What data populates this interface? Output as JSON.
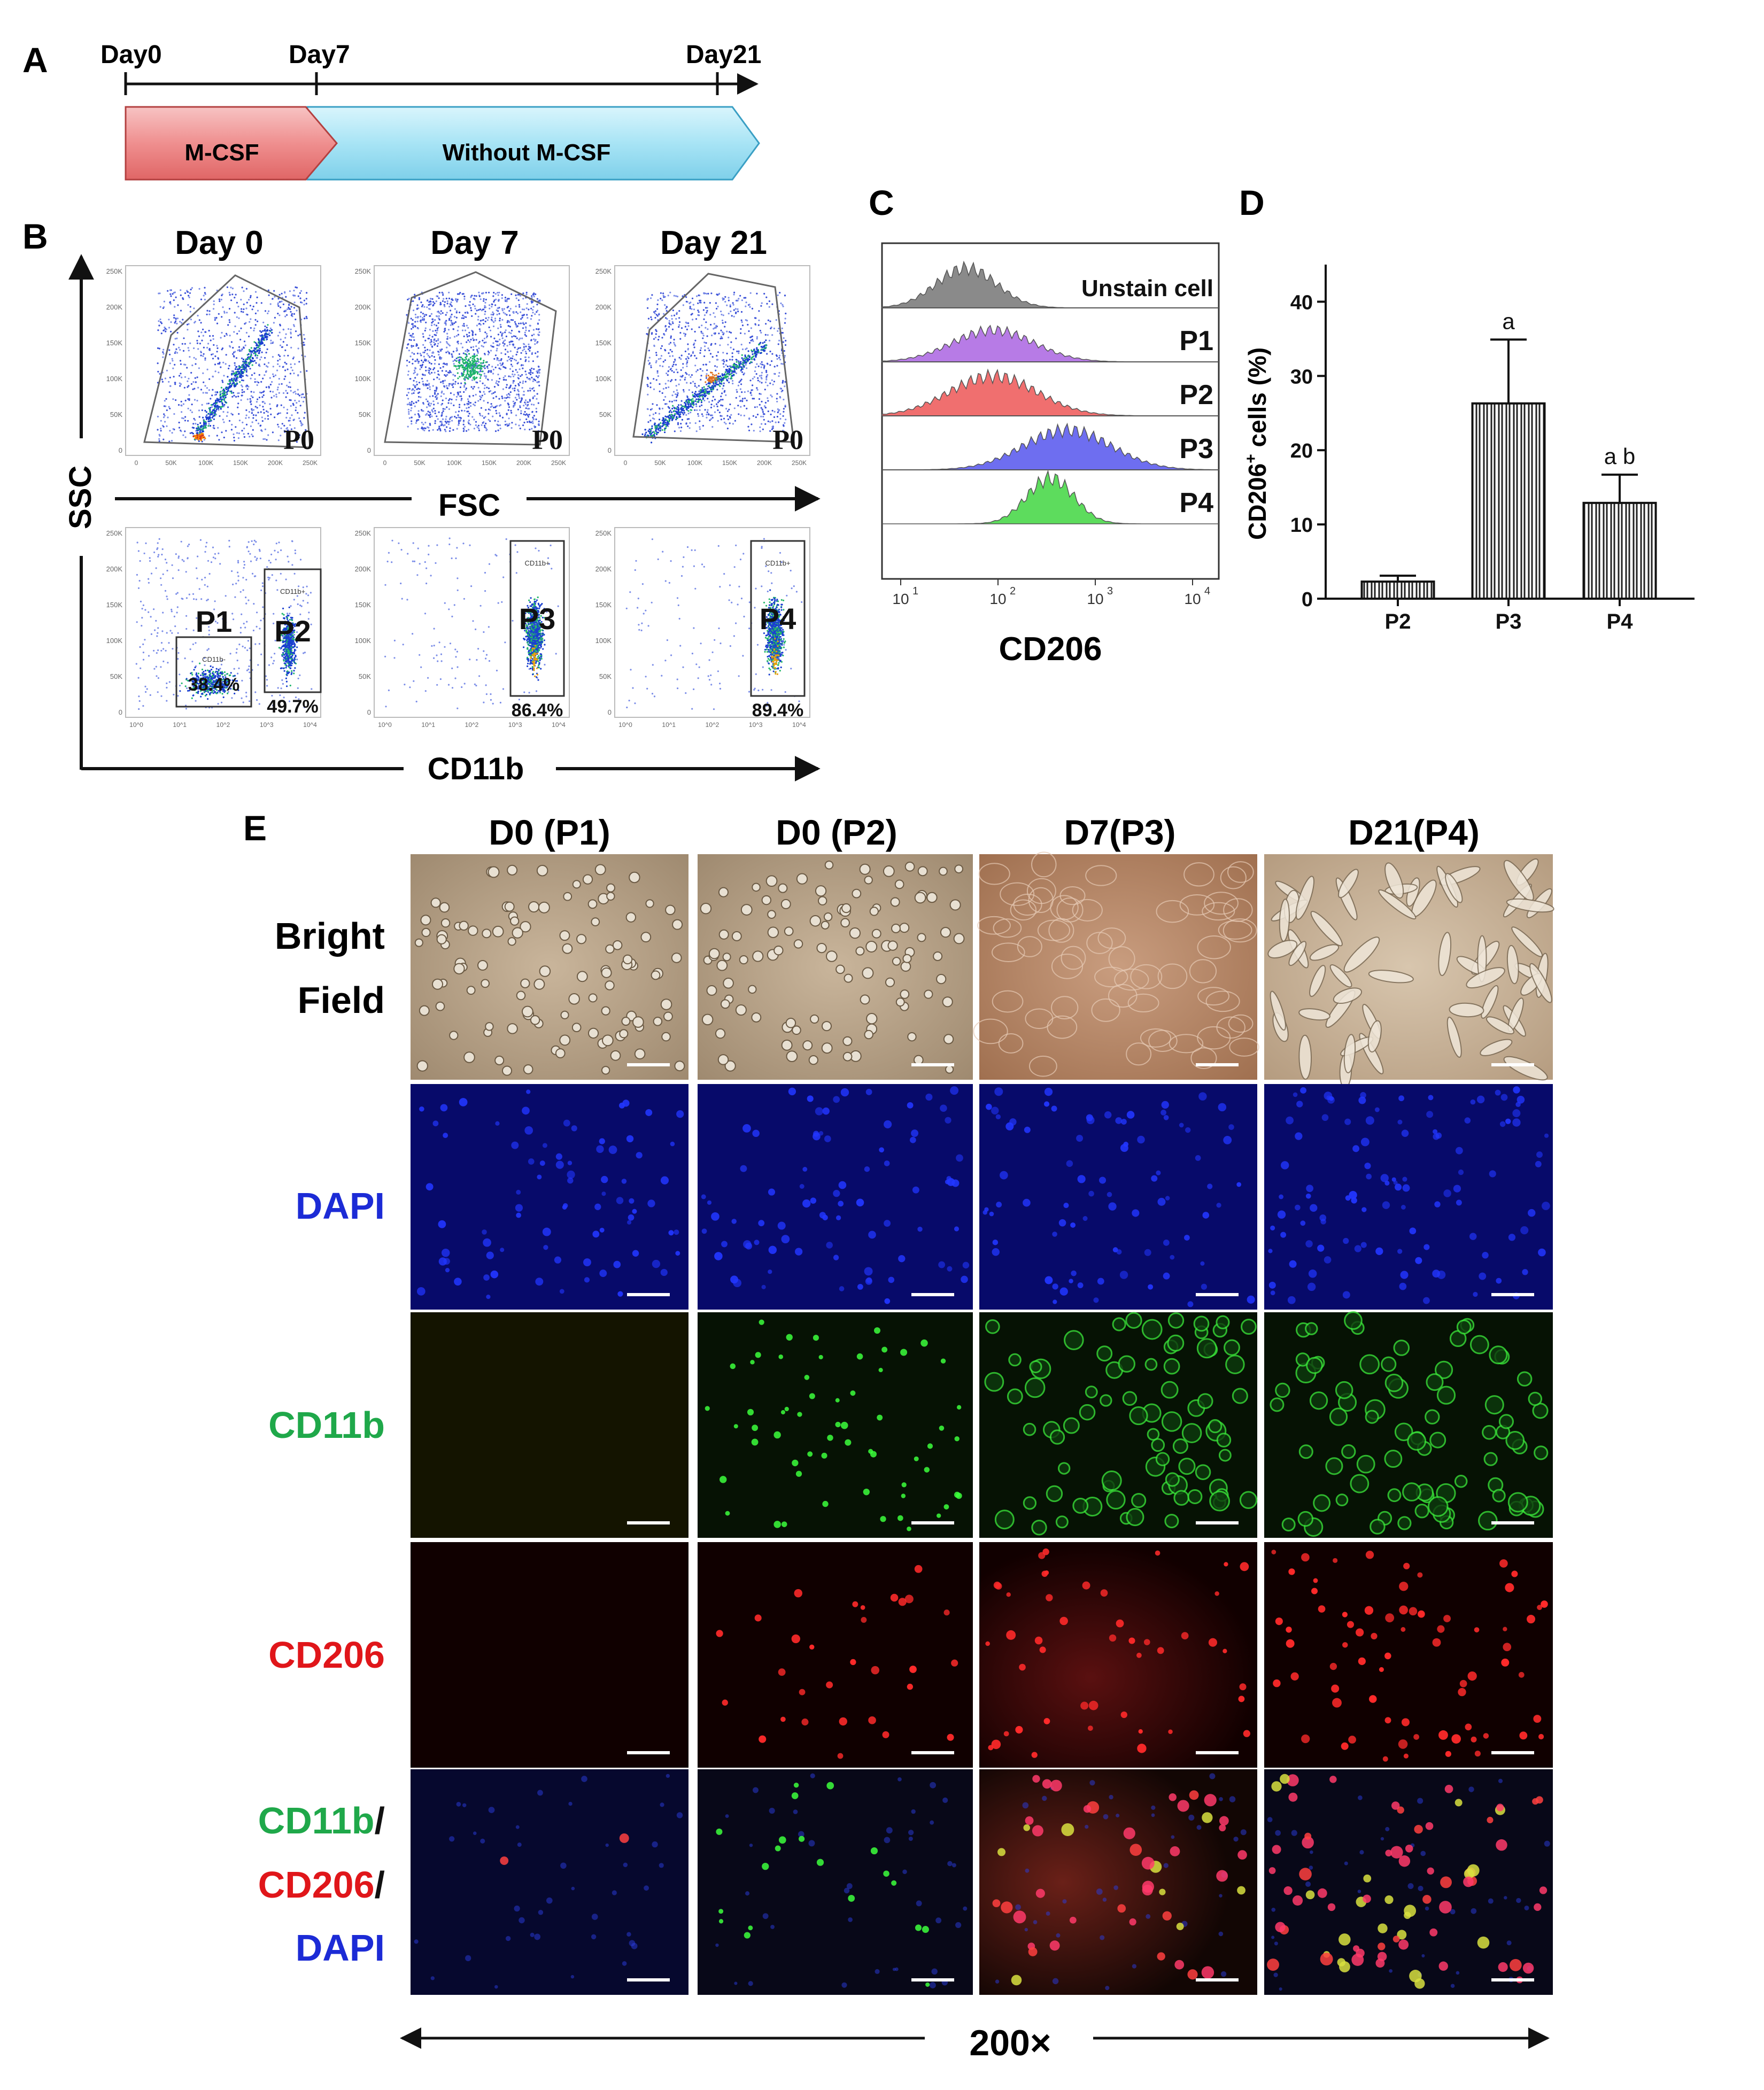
{
  "panel_letters": [
    "A",
    "B",
    "C",
    "D",
    "E"
  ],
  "timeline": {
    "days": [
      "Day0",
      "Day7",
      "Day21"
    ],
    "phase1": "M-CSF",
    "phase2": "Without M-CSF"
  },
  "flow_scatter": {
    "day_titles": [
      "Day 0",
      "Day 7",
      "Day 21"
    ],
    "gate_top": "P0",
    "x_axis_top": "FSC",
    "x_axis_bottom": "CD11b",
    "y_axis": "SSC",
    "y_ticks": [
      "250K",
      "200K",
      "150K",
      "100K",
      "50K",
      "0"
    ],
    "fsc_ticks": [
      "0",
      "50K",
      "100K",
      "150K",
      "200K",
      "250K"
    ],
    "cd11b_ticks": [
      "10^0",
      "10^1",
      "10^2",
      "10^3",
      "10^4"
    ],
    "gates_bottom": [
      {
        "plot": "Day 0",
        "name": "P1",
        "percent": "38.4%",
        "inner": "CD11b-"
      },
      {
        "plot": "Day 0",
        "name": "P2",
        "percent": "49.7%",
        "inner": "CD11b+"
      },
      {
        "plot": "Day 7",
        "name": "P3",
        "percent": "86.4%",
        "inner": "CD11b+"
      },
      {
        "plot": "Day 21",
        "name": "P4",
        "percent": "89.4%",
        "inner": "CD11b+"
      }
    ]
  },
  "histogram": {
    "xlabel": "CD206",
    "ticks": [
      "10",
      "10",
      "10",
      "10"
    ],
    "tick_exps": [
      "1",
      "2",
      "3",
      "4"
    ],
    "rows": [
      {
        "label": "Unstain cell",
        "color": "#8a8a8a"
      },
      {
        "label": "P1",
        "color": "#b77be6"
      },
      {
        "label": "P2",
        "color": "#f06f6f"
      },
      {
        "label": "P3",
        "color": "#6e6ef0"
      },
      {
        "label": "P4",
        "color": "#5ddc5d"
      }
    ]
  },
  "chart_data": {
    "type": "bar",
    "categories": [
      "P2",
      "P3",
      "P4"
    ],
    "values": [
      2.3,
      26.3,
      12.9
    ],
    "errors": [
      0.8,
      8.6,
      3.8
    ],
    "annotations": [
      "",
      "a",
      "a b"
    ],
    "ylabel_main": "CD206",
    "ylabel_sup": "+",
    "ylabel_rest": " cells (%)",
    "ylim": [
      0,
      45
    ],
    "yticks": [
      "0",
      "10",
      "20",
      "30",
      "40"
    ]
  },
  "micro": {
    "columns": [
      "D0 (P1)",
      "D0 (P2)",
      "D7(P3)",
      "D21(P4)"
    ],
    "rows": {
      "bright1": "Bright",
      "bright2": "Field",
      "dapi": "DAPI",
      "cd11b": "CD11b",
      "cd206": "CD206",
      "merge1": "CD11b",
      "slash": "/",
      "merge2": "CD206",
      "merge3": "DAPI"
    },
    "colors": {
      "dapi": "#1c2bd6",
      "cd11b": "#1fa84a",
      "cd206": "#e0161a"
    },
    "magnification": "200×"
  }
}
